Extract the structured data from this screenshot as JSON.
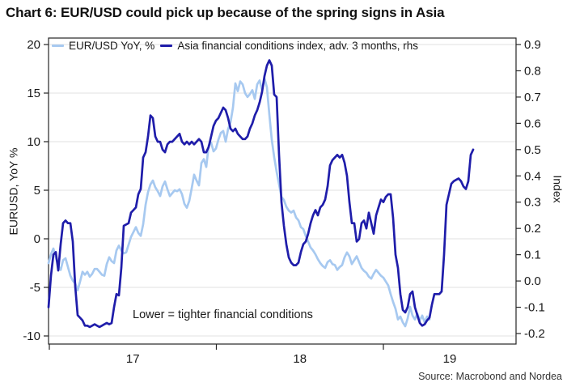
{
  "title": "Chart 6: EUR/USD could pick up because of the spring signs in Asia",
  "source": "Source: Macrobond and Nordea",
  "annotation": "Lower = tighter financial conditions",
  "legend": [
    {
      "label": "EUR/USD YoY, %",
      "color": "#a7c9f0"
    },
    {
      "label": "Asia financial conditions index, adv. 3 months, rhs",
      "color": "#1f1daa"
    }
  ],
  "colors": {
    "eurusd_line": "#a7c9f0",
    "asia_fci_line": "#1f1daa",
    "grid": "#e2e2e2",
    "frame": "#262626",
    "tick_text": "#1a1a1a"
  },
  "chart_data": {
    "type": "line",
    "title": "Chart 6: EUR/USD could pick up because of the spring signs in Asia",
    "annotation": "Lower = tighter financial conditions",
    "grid": "horizontal",
    "legend_position": "top-left-inside",
    "x": {
      "min": 2016.995,
      "max": 2019.794,
      "tick_years": [
        2017,
        2018,
        2019
      ],
      "tick_labels": [
        "17",
        "18",
        "19"
      ]
    },
    "y_left": {
      "label": "EURUSD, YoY %",
      "lim": [
        -10,
        20
      ],
      "ticks": [
        20,
        15,
        10,
        5,
        0,
        -5,
        -10
      ]
    },
    "y_right": {
      "label": "Index",
      "lim": [
        -0.2,
        0.9
      ],
      "ticks": [
        0.9,
        0.8,
        0.7,
        0.6,
        0.5,
        0.4,
        0.3,
        0.2,
        0.1,
        0.0,
        -0.1,
        -0.2
      ]
    },
    "series": [
      {
        "name": "EUR/USD YoY, %",
        "axis": "left",
        "color": "#a7c9f0",
        "t_start": 2016.995,
        "t_step": 0.014528,
        "values": [
          -2.5,
          -1.6,
          -1.0,
          -1.9,
          -2.8,
          -3.2,
          -2.2,
          -2.0,
          -2.9,
          -3.8,
          -4.3,
          -4.6,
          -5.3,
          -4.4,
          -3.4,
          -3.7,
          -3.4,
          -3.9,
          -3.6,
          -3.1,
          -3.1,
          -3.4,
          -3.7,
          -3.8,
          -2.6,
          -1.9,
          -2.3,
          -2.5,
          -1.2,
          -0.7,
          -1.2,
          -1.5,
          -1.4,
          -0.6,
          0.2,
          0.7,
          1.2,
          0.6,
          0.3,
          1.5,
          3.5,
          4.8,
          5.6,
          6.0,
          5.3,
          4.9,
          4.4,
          5.4,
          5.9,
          5.1,
          4.4,
          4.7,
          5.0,
          4.9,
          5.1,
          4.6,
          3.6,
          3.2,
          3.9,
          5.2,
          6.6,
          6.0,
          5.5,
          7.8,
          8.2,
          7.4,
          9.6,
          9.9,
          9.0,
          9.3,
          10.2,
          10.9,
          11.1,
          10.0,
          11.3,
          12.0,
          13.5,
          16.0,
          15.2,
          16.2,
          15.9,
          15.0,
          14.6,
          14.9,
          15.3,
          14.4,
          15.9,
          16.3,
          15.3,
          16.5,
          15.6,
          12.8,
          10.2,
          8.4,
          6.9,
          5.6,
          4.3,
          4.0,
          3.3,
          2.9,
          2.7,
          2.9,
          2.2,
          1.9,
          1.2,
          1.0,
          0.3,
          -0.3,
          -0.9,
          -1.2,
          -1.6,
          -2.1,
          -2.5,
          -2.8,
          -3.0,
          -2.4,
          -2.2,
          -2.6,
          -2.7,
          -3.2,
          -2.9,
          -2.7,
          -1.9,
          -1.4,
          -1.8,
          -2.6,
          -2.2,
          -1.8,
          -2.4,
          -3.0,
          -3.3,
          -3.5,
          -3.9,
          -4.1,
          -3.6,
          -3.2,
          -3.5,
          -3.8,
          -4.0,
          -4.4,
          -4.8,
          -5.7,
          -6.5,
          -7.2,
          -8.3,
          -8.0,
          -8.6,
          -9.0,
          -8.2,
          -7.0,
          -7.9,
          -8.3,
          -7.7,
          -8.4,
          -7.9,
          -8.6,
          -8.0,
          -8.3
        ]
      },
      {
        "name": "Asia financial conditions index, adv. 3 months, rhs",
        "axis": "right",
        "color": "#1f1daa",
        "t_start": 2016.995,
        "t_step": 0.014528,
        "values": [
          -0.1,
          0.02,
          0.1,
          0.11,
          0.04,
          0.14,
          0.22,
          0.23,
          0.22,
          0.22,
          0.15,
          -0.02,
          -0.13,
          -0.14,
          -0.15,
          -0.17,
          -0.17,
          -0.175,
          -0.17,
          -0.165,
          -0.17,
          -0.175,
          -0.17,
          -0.165,
          -0.16,
          -0.165,
          -0.16,
          -0.1,
          -0.05,
          -0.055,
          0.05,
          0.21,
          0.215,
          0.22,
          0.26,
          0.27,
          0.28,
          0.33,
          0.35,
          0.47,
          0.49,
          0.55,
          0.63,
          0.62,
          0.55,
          0.53,
          0.53,
          0.5,
          0.49,
          0.52,
          0.53,
          0.53,
          0.54,
          0.55,
          0.56,
          0.53,
          0.52,
          0.53,
          0.52,
          0.53,
          0.52,
          0.53,
          0.54,
          0.53,
          0.49,
          0.49,
          0.51,
          0.55,
          0.59,
          0.61,
          0.62,
          0.64,
          0.66,
          0.65,
          0.62,
          0.58,
          0.57,
          0.58,
          0.56,
          0.55,
          0.54,
          0.54,
          0.55,
          0.58,
          0.6,
          0.63,
          0.65,
          0.68,
          0.72,
          0.78,
          0.82,
          0.84,
          0.82,
          0.71,
          0.7,
          0.48,
          0.3,
          0.21,
          0.14,
          0.09,
          0.07,
          0.06,
          0.06,
          0.07,
          0.11,
          0.14,
          0.15,
          0.18,
          0.22,
          0.25,
          0.27,
          0.25,
          0.28,
          0.29,
          0.31,
          0.36,
          0.44,
          0.46,
          0.47,
          0.48,
          0.47,
          0.48,
          0.45,
          0.4,
          0.3,
          0.22,
          0.22,
          0.15,
          0.16,
          0.22,
          0.23,
          0.2,
          0.26,
          0.22,
          0.18,
          0.25,
          0.28,
          0.31,
          0.3,
          0.32,
          0.33,
          0.33,
          0.24,
          0.1,
          0.05,
          -0.05,
          -0.11,
          -0.12,
          -0.1,
          -0.05,
          -0.04,
          -0.1,
          -0.13,
          -0.16,
          -0.17,
          -0.165,
          -0.15,
          -0.14,
          -0.09,
          -0.05,
          -0.05,
          -0.05,
          -0.04,
          0.1,
          0.29,
          0.33,
          0.37,
          0.38,
          0.385,
          0.39,
          0.38,
          0.36,
          0.35,
          0.38,
          0.48,
          0.5
        ]
      }
    ]
  }
}
